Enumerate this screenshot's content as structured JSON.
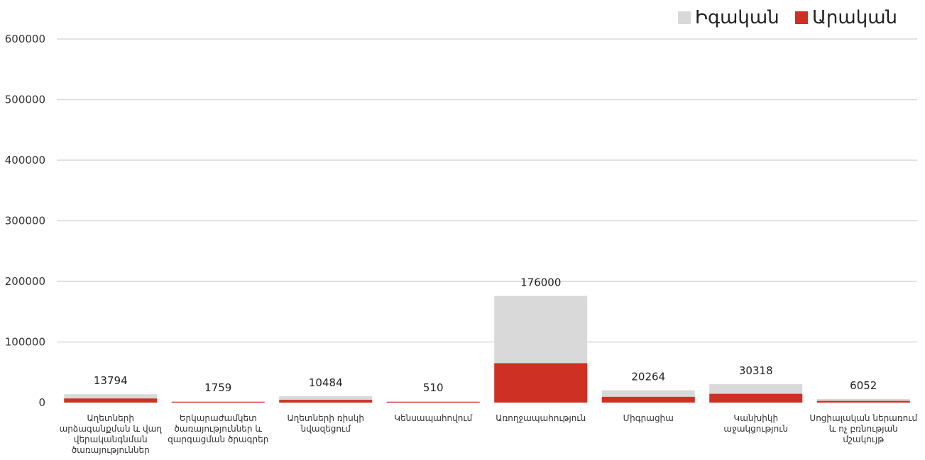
{
  "chart_data": {
    "type": "bar",
    "stacked": "overlay",
    "categories": [
      [
        "Աղետների",
        "արձագանքման և վաղ",
        "վերականգնման",
        "ծառայություններ"
      ],
      [
        "Երկարաժամկետ",
        "ծառայություններ և",
        "զարգացման ծրագրեր"
      ],
      [
        "Աղետների  ռիսկի",
        "նվազեցում"
      ],
      [
        "Կենսապահովում"
      ],
      [
        "Առողջապահություն"
      ],
      [
        "Միգրացիա"
      ],
      [
        "Կանխիկի",
        "աջակցություն"
      ],
      [
        "Սոցիալական ներառում",
        "և ոչ բռնության",
        "մշակույթ"
      ]
    ],
    "series": [
      {
        "name": "Իգական",
        "color": "#d9d9d9",
        "values": [
          13794,
          1759,
          10484,
          510,
          176000,
          20264,
          30318,
          6052
        ]
      },
      {
        "name": "Արական",
        "color": "#cf3024",
        "values": [
          6800,
          700,
          4500,
          200,
          65000,
          9500,
          14500,
          2800
        ]
      }
    ],
    "data_labels": [
      "13794",
      "1759",
      "10484",
      "510",
      "176000",
      "20264",
      "30318",
      "6052"
    ],
    "yticks": [
      "0",
      "100000",
      "200000",
      "300000",
      "400000",
      "500000",
      "600000"
    ],
    "ylim": [
      0,
      600000
    ],
    "grid": true,
    "legend_position": "top-right"
  }
}
